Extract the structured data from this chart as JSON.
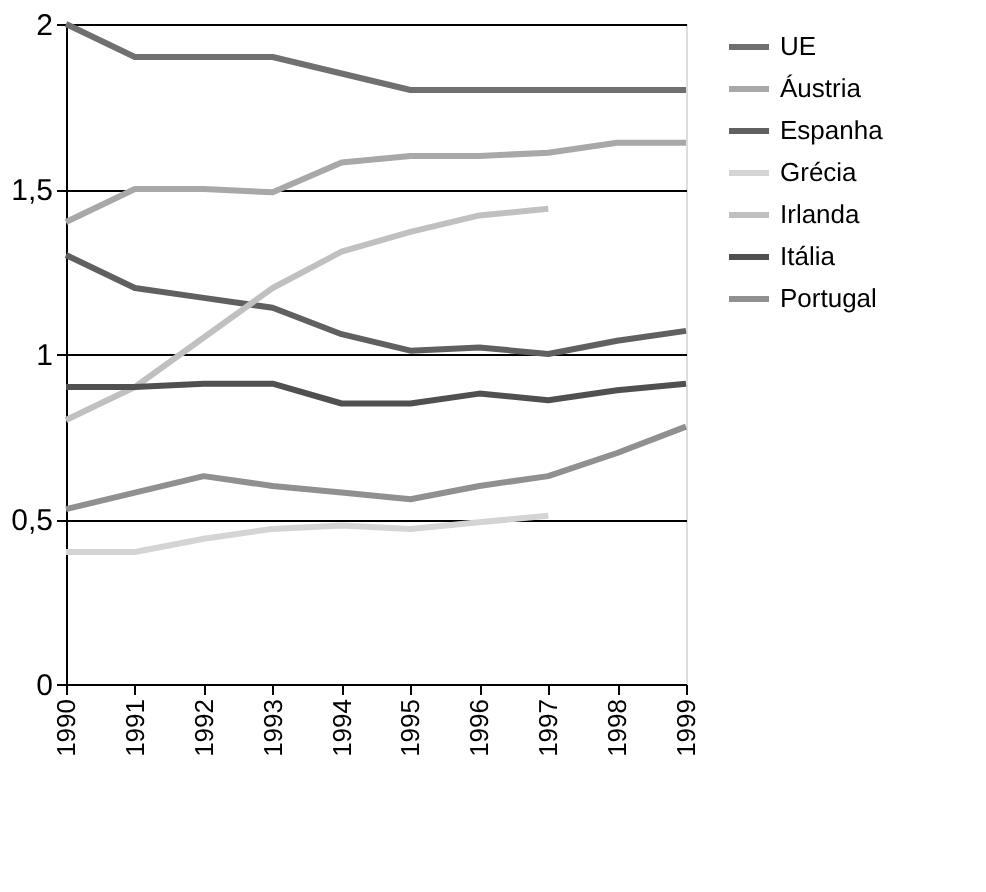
{
  "chart_data": {
    "type": "line",
    "categories": [
      "1990",
      "1991",
      "1992",
      "1993",
      "1994",
      "1995",
      "1996",
      "1997",
      "1998",
      "1999"
    ],
    "ylim": [
      0,
      2
    ],
    "yticks": [
      0,
      {
        "value": 0.5,
        "label": "0,5"
      },
      1,
      {
        "value": 1.5,
        "label": "1,5"
      },
      2
    ],
    "grid": "y",
    "legend": "right",
    "marker": "none",
    "line_style": "solid",
    "series": [
      {
        "name": "UE",
        "color": "#707070",
        "values": [
          2.0,
          1.9,
          1.9,
          1.9,
          1.85,
          1.8,
          1.8,
          1.8,
          1.8,
          1.8
        ]
      },
      {
        "name": "Áustria",
        "color": "#a8a8a8",
        "values": [
          1.4,
          1.5,
          1.5,
          1.49,
          1.58,
          1.6,
          1.6,
          1.61,
          1.64,
          1.64
        ]
      },
      {
        "name": "Espanha",
        "color": "#606060",
        "values": [
          1.3,
          1.2,
          1.17,
          1.14,
          1.06,
          1.01,
          1.02,
          1.0,
          1.04,
          1.07
        ]
      },
      {
        "name": "Grécia",
        "color": "#d4d4d4",
        "values": [
          0.4,
          0.4,
          0.44,
          0.47,
          0.48,
          0.47,
          0.49,
          0.51,
          null,
          null
        ]
      },
      {
        "name": "Irlanda",
        "color": "#c0c0c0",
        "values": [
          0.8,
          0.9,
          1.05,
          1.2,
          1.31,
          1.37,
          1.42,
          1.44,
          null,
          null
        ]
      },
      {
        "name": "Itália",
        "color": "#505050",
        "values": [
          0.9,
          0.9,
          0.91,
          0.91,
          0.85,
          0.85,
          0.88,
          0.86,
          0.89,
          0.91
        ]
      },
      {
        "name": "Portugal",
        "color": "#909090",
        "values": [
          0.53,
          0.58,
          0.63,
          0.6,
          0.58,
          0.56,
          0.6,
          0.63,
          0.7,
          0.78
        ]
      }
    ]
  }
}
